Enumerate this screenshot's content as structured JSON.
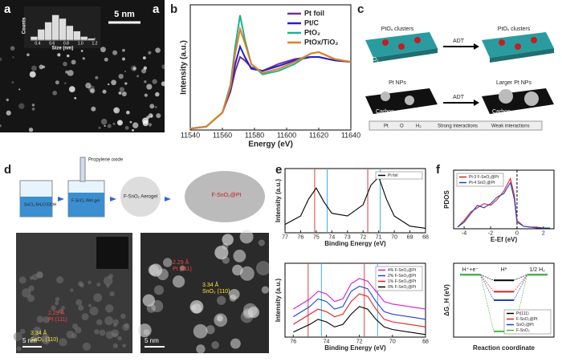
{
  "figure": {
    "panel_labels": [
      "a",
      "b",
      "c",
      "d",
      "e",
      "f"
    ],
    "a": {
      "scale_bar": "5 nm",
      "corner_label": "a"
    },
    "c": {
      "top_left": "PtOₓ clusters",
      "top_right": "PtOₓ clusters",
      "support_top": "TiO₂",
      "arrow_top": "ADT",
      "bottom_left": "Pt NPs",
      "bottom_right": "Larger Pt NPs",
      "support_bottom_left": "Carbon",
      "support_bottom_right": "Carbon",
      "arrow_bottom": "ADT",
      "legend": [
        "Pt",
        "O",
        "H₂",
        "Strong interactions",
        "Weak interactions"
      ]
    },
    "d": {
      "reagent": "Propylene oxide",
      "beaker1": "SnCl₄·5H₂O EtOH",
      "beaker2": "F-SnO₂ Wet-gel",
      "aerogel": "F-SnO₂ Aerogel",
      "product": "F-SnO₂@Pt",
      "left_spacing1": "2.29 Å",
      "left_plane1": "Pt (111)",
      "left_spacing2": "3.34 Å",
      "left_plane2": "SnO₂ (110)",
      "left_scale": "5 nm",
      "right_spacing1": "2.29 Å",
      "right_plane1": "Pt (111)",
      "right_spacing2": "3.34 Å",
      "right_plane2": "SnO₂ (110)",
      "right_scale": "5 nm"
    }
  },
  "chart_data": [
    {
      "type": "histogram",
      "xlabel": "Size (nm)",
      "ylabel": "Counts",
      "bins": [
        0.3,
        0.4,
        0.5,
        0.6,
        0.7,
        0.8,
        0.9,
        1.0,
        1.1,
        1.2
      ],
      "counts": [
        2,
        6,
        10,
        14,
        12,
        8,
        5,
        2,
        1
      ],
      "color": "#dddddd",
      "xlim": [
        0.3,
        1.2
      ],
      "ylim": [
        0,
        16
      ],
      "xticks": [
        0.4,
        0.6,
        0.8,
        {
          "value": 1,
          "label": "1.0"
        },
        1.2
      ]
    },
    {
      "type": "line",
      "xlabel": "Energy (eV)",
      "ylabel": "Intensity (a.u.)",
      "x": [
        11540,
        11550,
        11560,
        11565,
        11568,
        11571,
        11574,
        11578,
        11585,
        11595,
        11605,
        11615,
        11620,
        11630,
        11640
      ],
      "xlim": [
        11540,
        11640
      ],
      "ylim": [
        0,
        1.8
      ],
      "xticks": [
        11540,
        11560,
        11580,
        11600,
        11620,
        11640
      ],
      "legend": "upper right",
      "series": [
        {
          "name": "Pt foil",
          "color": "#7030a0",
          "values": [
            0.02,
            0.05,
            0.25,
            0.55,
            0.85,
            1.05,
            1.0,
            0.9,
            0.85,
            0.95,
            1.02,
            1.05,
            1.05,
            1.0,
            0.98
          ]
        },
        {
          "name": "Pt/C",
          "color": "#2222c0",
          "values": [
            0.02,
            0.05,
            0.25,
            0.6,
            0.95,
            1.2,
            1.05,
            0.88,
            0.85,
            0.92,
            1.0,
            1.05,
            1.05,
            1.0,
            0.98
          ]
        },
        {
          "name": "PtO₂",
          "color": "#20b090",
          "values": [
            0.02,
            0.05,
            0.25,
            0.65,
            1.2,
            1.65,
            1.3,
            0.95,
            0.8,
            0.85,
            0.95,
            1.1,
            1.12,
            1.02,
            0.98
          ]
        },
        {
          "name": "PtOx/TiO₂",
          "color": "#e08020",
          "values": [
            0.02,
            0.05,
            0.25,
            0.62,
            1.1,
            1.45,
            1.25,
            0.95,
            0.82,
            0.88,
            0.98,
            1.1,
            1.12,
            1.02,
            0.98
          ]
        }
      ]
    },
    {
      "type": "line",
      "xlabel": "Binding Energy (eV)",
      "ylabel": "Intensity (a.u.)",
      "x": [
        77,
        76,
        75.5,
        75,
        74.5,
        74,
        73,
        72,
        71.5,
        71,
        70.5,
        70,
        69,
        68
      ],
      "xlim": [
        77,
        68
      ],
      "ylim": [
        0,
        1.15
      ],
      "xticks": [
        77,
        76,
        75,
        74,
        73,
        72,
        71,
        70,
        69,
        68
      ],
      "legend": "upper right",
      "ref_lines": [
        {
          "value": 75.1,
          "color": "#d04040"
        },
        {
          "value": 74.3,
          "color": "#40b0e0"
        },
        {
          "value": 71.7,
          "color": "#d04040"
        },
        {
          "value": 70.9,
          "color": "#40b0e0"
        }
      ],
      "series": [
        {
          "name": "Pt foil",
          "color": "#000000",
          "values": [
            0.15,
            0.3,
            0.6,
            0.8,
            0.55,
            0.35,
            0.3,
            0.5,
            0.85,
            1.0,
            0.6,
            0.3,
            0.12,
            0.08
          ]
        }
      ]
    },
    {
      "type": "line",
      "xlabel": "Binding Energy (eV)",
      "ylabel": "Intensity (a.u.)",
      "x": [
        76,
        75,
        74.5,
        74,
        73.5,
        73,
        72.5,
        72,
        71.5,
        71,
        70.5,
        70,
        69,
        68
      ],
      "xlim": [
        76.5,
        68
      ],
      "ylim": [
        0,
        1.45
      ],
      "xticks": [
        76,
        74,
        72,
        70,
        68
      ],
      "legend": "upper right",
      "ref_lines": [
        {
          "value": 75.1,
          "color": "#d04040"
        },
        {
          "value": 74.3,
          "color": "#40b0e0"
        },
        {
          "value": 71.7,
          "color": "#d04040"
        },
        {
          "value": 70.9,
          "color": "#40b0e0"
        }
      ],
      "series": [
        {
          "name": "4% F-SnO₂@Pt",
          "color": "#d020d0",
          "values": [
            0.55,
            0.75,
            0.9,
            0.85,
            0.7,
            0.75,
            1.05,
            1.15,
            1.1,
            0.9,
            0.7,
            0.65,
            0.6,
            0.55
          ]
        },
        {
          "name": "2% F-SnO₂@Pt",
          "color": "#2040e0",
          "values": [
            0.4,
            0.6,
            0.75,
            0.7,
            0.55,
            0.6,
            0.9,
            1.0,
            0.95,
            0.7,
            0.5,
            0.45,
            0.4,
            0.35
          ]
        },
        {
          "name": "1% F-SnO₂@Pt",
          "color": "#e02020",
          "values": [
            0.25,
            0.45,
            0.55,
            0.5,
            0.4,
            0.45,
            0.7,
            0.85,
            0.8,
            0.55,
            0.35,
            0.3,
            0.25,
            0.2
          ]
        },
        {
          "name": "0% F-SnO₂@Pt",
          "color": "#000000",
          "values": [
            0.1,
            0.25,
            0.35,
            0.3,
            0.2,
            0.25,
            0.45,
            0.6,
            0.55,
            0.35,
            0.2,
            0.15,
            0.1,
            0.05
          ]
        }
      ]
    },
    {
      "type": "line",
      "xlabel": "E-Ef (eV)",
      "ylabel": "PDOS",
      "x": [
        -4.5,
        -4,
        -3.5,
        -3,
        -2.5,
        -2,
        -1.5,
        -1,
        -0.5,
        -0.2,
        0,
        0.5,
        1,
        1.5,
        2,
        2.5
      ],
      "xlim": [
        -4.8,
        2.8
      ],
      "ylim": [
        0,
        70
      ],
      "xticks": [
        -4,
        -2,
        0,
        2
      ],
      "zero_line": 0,
      "legend": "upper left",
      "series": [
        {
          "name": "Pt-3 F-SnO₂@Pt",
          "color": "#e02020",
          "values": [
            2,
            10,
            20,
            25,
            30,
            28,
            35,
            45,
            60,
            40,
            10,
            3,
            2,
            2,
            1,
            1
          ]
        },
        {
          "name": "Pt-4 SnO₂@Pt",
          "color": "#2040c0",
          "values": [
            2,
            8,
            18,
            28,
            25,
            30,
            38,
            42,
            55,
            35,
            8,
            3,
            2,
            1,
            1,
            1
          ]
        }
      ]
    },
    {
      "type": "levels",
      "xlabel": "Reaction coordinate",
      "ylabel": "ΔG_H (eV)",
      "categories": [
        "H⁺+e⁻",
        "H*",
        "1/2 H₂"
      ],
      "ylim": [
        -1.1,
        0.2
      ],
      "legend": "lower right",
      "series": [
        {
          "name": "Pt(111)",
          "color": "#000000",
          "values": [
            0,
            -0.1,
            0
          ]
        },
        {
          "name": "F-SnO₂@Pt",
          "color": "#e02020",
          "values": [
            0,
            -0.3,
            0
          ]
        },
        {
          "name": "SnO₂@Pt",
          "color": "#2040c0",
          "values": [
            0,
            -0.45,
            0
          ]
        },
        {
          "name": "F-SnO₂",
          "color": "#40c040",
          "values": [
            0,
            -1.0,
            0
          ]
        }
      ]
    }
  ]
}
